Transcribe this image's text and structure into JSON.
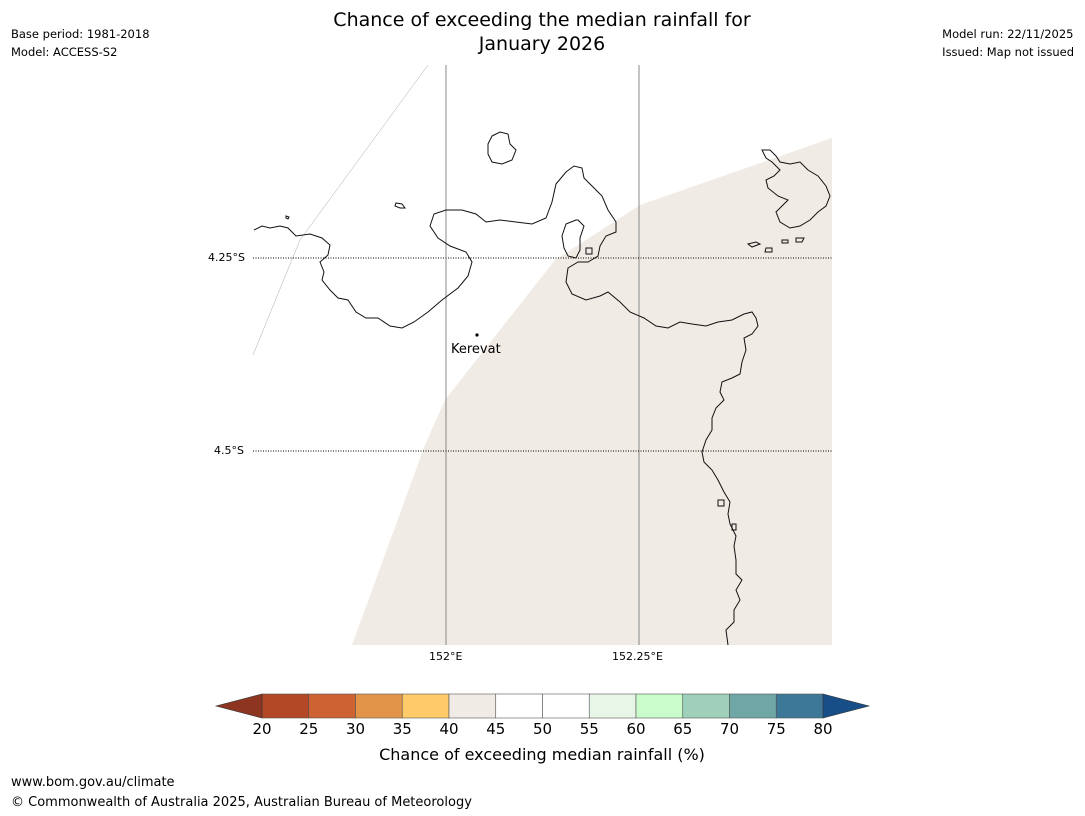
{
  "header": {
    "title_line1": "Chance of exceeding the median rainfall for",
    "title_line2": "January 2026",
    "base_period": "Base period: 1981-2018",
    "model": "Model: ACCESS-S2",
    "model_run": "Model run: 22/11/2025",
    "issued": "Issued: Map not issued"
  },
  "map": {
    "lat_labels": [
      "4.25°S",
      "4.5°S"
    ],
    "lon_labels": [
      "152°E",
      "152.25°E"
    ],
    "place": "Kerevat",
    "shaded_category_color": "#f0ebe5"
  },
  "colorbar": {
    "label": "Chance of exceeding median rainfall (%)",
    "ticks": [
      "20",
      "25",
      "30",
      "35",
      "40",
      "45",
      "50",
      "55",
      "60",
      "65",
      "70",
      "75",
      "80"
    ],
    "under_color": "#8e3522",
    "over_color": "#174e87",
    "colors": [
      "#b24825",
      "#cc6331",
      "#e29548",
      "#fecb68",
      "#f1ebe5",
      "#ffffff",
      "#ffffff",
      "#e8f6e8",
      "#c9fcca",
      "#9fd1ba",
      "#6fa7a6",
      "#3e7898"
    ]
  },
  "footer": {
    "url": "www.bom.gov.au/climate",
    "copyright": "© Commonwealth of Australia 2025, Australian Bureau of Meteorology"
  }
}
